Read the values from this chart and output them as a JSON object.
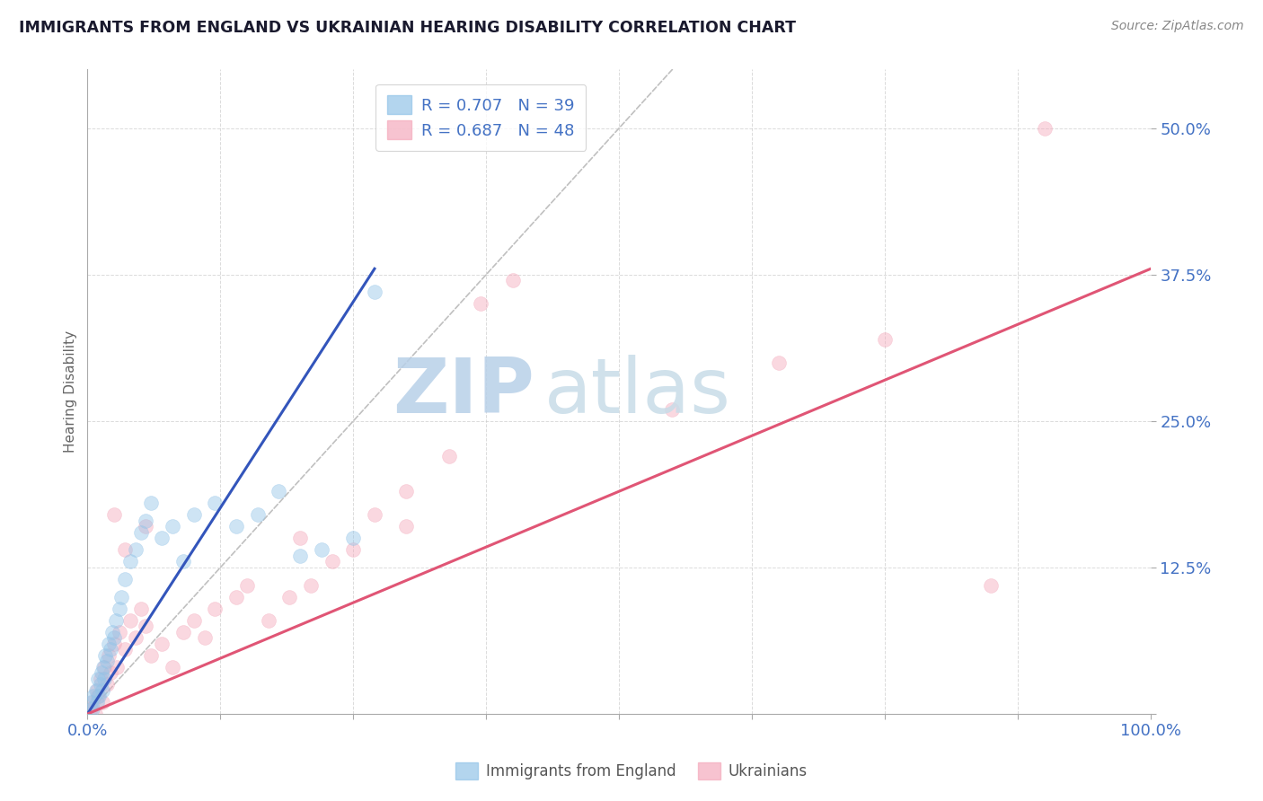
{
  "title": "IMMIGRANTS FROM ENGLAND VS UKRAINIAN HEARING DISABILITY CORRELATION CHART",
  "source": "Source: ZipAtlas.com",
  "ylabel": "Hearing Disability",
  "title_color": "#1a1a2e",
  "title_fontsize": 12.5,
  "source_color": "#888888",
  "background_color": "#ffffff",
  "grid_color": "#cccccc",
  "watermark_zip": "ZIP",
  "watermark_atlas": "atlas",
  "watermark_color": "#c8dff0",
  "legend_r1": "R = 0.707",
  "legend_n1": "N = 39",
  "legend_r2": "R = 0.687",
  "legend_n2": "N = 48",
  "legend_text_color": "#4472c4",
  "blue_scatter_color": "#93c4e8",
  "pink_scatter_color": "#f4aabc",
  "blue_line_color": "#3355bb",
  "pink_line_color": "#e05575",
  "diag_line_color": "#c0c0c0",
  "ytick_label_color": "#4472c4",
  "xtick_label_color": "#4472c4",
  "ylabel_color": "#666666",
  "bottom_legend_color": "#555555",
  "xlim": [
    0,
    100
  ],
  "ylim": [
    0,
    55
  ],
  "xtick_positions": [
    0,
    12.5,
    25,
    37.5,
    50,
    62.5,
    75,
    87.5,
    100
  ],
  "ytick_positions": [
    0,
    12.5,
    25,
    37.5,
    50
  ],
  "blue_line_x1": 0,
  "blue_line_y1": 0,
  "blue_line_x2": 27,
  "blue_line_y2": 38,
  "pink_line_x1": 0,
  "pink_line_y1": 0,
  "pink_line_x2": 100,
  "pink_line_y2": 38,
  "marker_size": 130,
  "marker_alpha": 0.45,
  "blue_points_x": [
    0.3,
    0.5,
    0.6,
    0.8,
    0.9,
    1.0,
    1.1,
    1.2,
    1.3,
    1.4,
    1.5,
    1.6,
    1.7,
    1.8,
    2.0,
    2.2,
    2.3,
    2.5,
    2.7,
    3.0,
    3.2,
    3.5,
    4.0,
    4.5,
    5.0,
    5.5,
    6.0,
    7.0,
    8.0,
    9.0,
    10.0,
    12.0,
    14.0,
    16.0,
    18.0,
    20.0,
    22.0,
    25.0,
    27.0
  ],
  "blue_points_y": [
    1.0,
    0.5,
    1.5,
    2.0,
    1.0,
    3.0,
    1.5,
    2.5,
    3.5,
    2.0,
    4.0,
    3.0,
    5.0,
    4.5,
    6.0,
    5.5,
    7.0,
    6.5,
    8.0,
    9.0,
    10.0,
    11.5,
    13.0,
    14.0,
    15.5,
    16.5,
    18.0,
    15.0,
    16.0,
    13.0,
    17.0,
    18.0,
    16.0,
    17.0,
    19.0,
    13.5,
    14.0,
    15.0,
    36.0
  ],
  "pink_points_x": [
    0.3,
    0.5,
    0.7,
    0.9,
    1.0,
    1.2,
    1.4,
    1.6,
    1.8,
    2.0,
    2.2,
    2.5,
    2.8,
    3.0,
    3.5,
    4.0,
    4.5,
    5.0,
    5.5,
    6.0,
    7.0,
    8.0,
    9.0,
    10.0,
    11.0,
    12.0,
    14.0,
    15.0,
    17.0,
    19.0,
    21.0,
    23.0,
    25.0,
    27.0,
    30.0,
    34.0,
    37.0,
    40.0,
    55.0,
    65.0,
    75.0,
    85.0,
    20.0,
    30.0,
    2.5,
    3.5,
    5.5,
    90.0
  ],
  "pink_points_y": [
    0.5,
    1.0,
    0.0,
    2.0,
    1.5,
    3.0,
    1.0,
    4.0,
    2.5,
    5.0,
    3.5,
    6.0,
    4.0,
    7.0,
    5.5,
    8.0,
    6.5,
    9.0,
    7.5,
    5.0,
    6.0,
    4.0,
    7.0,
    8.0,
    6.5,
    9.0,
    10.0,
    11.0,
    8.0,
    10.0,
    11.0,
    13.0,
    14.0,
    17.0,
    19.0,
    22.0,
    35.0,
    37.0,
    26.0,
    30.0,
    32.0,
    11.0,
    15.0,
    16.0,
    17.0,
    14.0,
    16.0,
    50.0
  ]
}
